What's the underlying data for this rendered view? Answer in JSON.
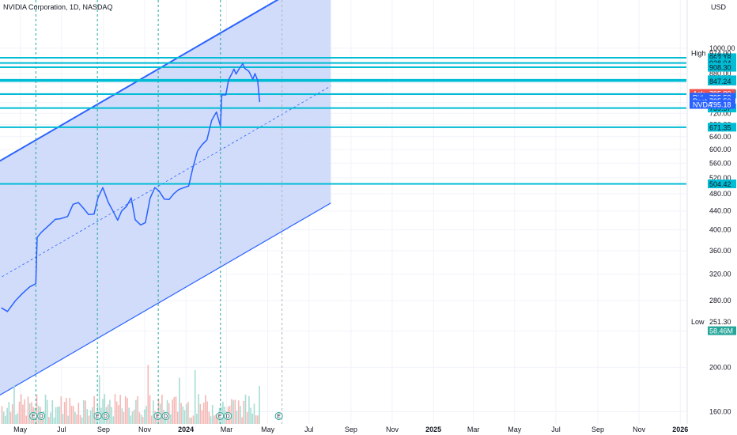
{
  "header": {
    "title": "NVIDIA Corporation, 1D, NASDAQ",
    "currency": "USD"
  },
  "colors": {
    "line": "#2962ff",
    "level": "#00bcd4",
    "channel_fill": "#c9d6f9",
    "grid": "#f0f3fa",
    "vline": "#26a69a",
    "ask": "#ef5350",
    "bid": "#2962ff",
    "post": "#2962ff",
    "nvda": "#2962ff",
    "vol_up": "#a8dcd3",
    "vol_down": "#f6b7b5"
  },
  "chart_data": {
    "type": "line",
    "symbol": "NVDA",
    "y_scale": "log",
    "ylim": [
      145,
      1250
    ],
    "xlim": [
      "2023-04-01",
      "2026-01-10"
    ],
    "y_ticks": [
      1000,
      920,
      880,
      840,
      800,
      760,
      720,
      680,
      640,
      600,
      560,
      520,
      480,
      440,
      400,
      360,
      320,
      280,
      240,
      200,
      160
    ],
    "x_ticks": [
      {
        "date": "2023-05-01",
        "label": "May"
      },
      {
        "date": "2023-07-01",
        "label": "Jul"
      },
      {
        "date": "2023-09-01",
        "label": "Sep"
      },
      {
        "date": "2023-11-01",
        "label": "Nov"
      },
      {
        "date": "2024-01-01",
        "label": "2024",
        "bold": true
      },
      {
        "date": "2024-03-01",
        "label": "Mar"
      },
      {
        "date": "2024-05-01",
        "label": "May"
      },
      {
        "date": "2024-07-01",
        "label": "Jul"
      },
      {
        "date": "2024-09-01",
        "label": "Sep"
      },
      {
        "date": "2024-11-01",
        "label": "Nov"
      },
      {
        "date": "2025-01-01",
        "label": "2025",
        "bold": true
      },
      {
        "date": "2025-03-01",
        "label": "Mar"
      },
      {
        "date": "2025-05-01",
        "label": "May"
      },
      {
        "date": "2025-07-01",
        "label": "Jul"
      },
      {
        "date": "2025-09-01",
        "label": "Sep"
      },
      {
        "date": "2025-11-01",
        "label": "Nov"
      },
      {
        "date": "2026-01-01",
        "label": "2026",
        "bold": true
      }
    ],
    "series": [
      {
        "x": [
          "2023-04-03",
          "2023-04-12",
          "2023-04-24",
          "2023-05-04",
          "2023-05-15",
          "2023-05-24",
          "2023-05-26",
          "2023-06-01",
          "2023-06-13",
          "2023-06-22",
          "2023-06-29",
          "2023-07-10",
          "2023-07-18",
          "2023-07-26",
          "2023-08-03",
          "2023-08-10",
          "2023-08-18",
          "2023-08-24",
          "2023-08-31",
          "2023-09-08",
          "2023-09-15",
          "2023-09-22",
          "2023-09-28",
          "2023-10-05",
          "2023-10-12",
          "2023-10-18",
          "2023-10-26",
          "2023-11-02",
          "2023-11-09",
          "2023-11-16",
          "2023-11-22",
          "2023-11-30",
          "2023-12-07",
          "2023-12-14",
          "2023-12-21",
          "2023-12-29",
          "2024-01-05",
          "2024-01-11",
          "2024-01-18",
          "2024-01-25",
          "2024-02-01",
          "2024-02-08",
          "2024-02-15",
          "2024-02-21",
          "2024-02-23",
          "2024-02-29",
          "2024-03-04",
          "2024-03-08",
          "2024-03-12",
          "2024-03-15",
          "2024-03-20",
          "2024-03-25",
          "2024-03-28",
          "2024-04-03",
          "2024-04-09",
          "2024-04-12",
          "2024-04-16",
          "2024-04-19"
        ],
        "values": [
          270,
          265,
          280,
          290,
          300,
          305,
          385,
          395,
          410,
          422,
          423,
          428,
          455,
          459,
          445,
          432,
          433,
          471,
          495,
          460,
          440,
          420,
          440,
          450,
          470,
          421,
          410,
          415,
          469,
          495,
          487,
          467,
          466,
          480,
          490,
          495,
          499,
          545,
          595,
          615,
          630,
          695,
          725,
          675,
          790,
          790,
          852,
          875,
          900,
          878,
          903,
          925,
          903,
          890,
          855,
          880,
          850,
          762
        ]
      }
    ],
    "levels": [
      {
        "label": "953.18",
        "value": 953.18
      },
      {
        "label": "928.04",
        "value": 928.04
      },
      {
        "label": "908.30",
        "value": 908.3
      },
      {
        "label": "852.65",
        "value": 852.65
      },
      {
        "label": "847.24",
        "value": 847.24
      },
      {
        "label": "793.42",
        "value": 793.42
      },
      {
        "label": "739.57",
        "value": 739.57
      },
      {
        "label": "671.35",
        "value": 671.35
      },
      {
        "label": "504.42",
        "value": 504.42
      }
    ],
    "high": {
      "label": "High",
      "value": "974.00",
      "y": 974
    },
    "low": {
      "label": "Low",
      "value": "251.30",
      "y": 251.3
    },
    "volume_label": "58.46M",
    "quote": [
      {
        "label": "Ask",
        "value": "795.89",
        "y": 795.89,
        "color": "ask"
      },
      {
        "label": "Bid",
        "value": "795.59",
        "y": 781,
        "color": "bid"
      },
      {
        "label": "Post",
        "value": "795.50",
        "y": 767,
        "color": "post"
      },
      {
        "label": "NVDA",
        "value": "795.18",
        "y": 753,
        "color": "nvda"
      }
    ],
    "earnings_dates": [
      "2023-05-24",
      "2023-08-23",
      "2023-11-21",
      "2024-02-21"
    ],
    "future_earnings_date": "2024-05-22",
    "events": [
      {
        "date": "2023-05-25",
        "glyphs": [
          "E",
          "D"
        ]
      },
      {
        "date": "2023-08-28",
        "glyphs": [
          "E",
          "D"
        ]
      },
      {
        "date": "2023-11-25",
        "glyphs": [
          "E",
          "D"
        ]
      },
      {
        "date": "2024-02-25",
        "glyphs": [
          "E",
          "D"
        ]
      },
      {
        "date": "2024-05-22",
        "glyphs": [
          "E"
        ]
      }
    ]
  }
}
